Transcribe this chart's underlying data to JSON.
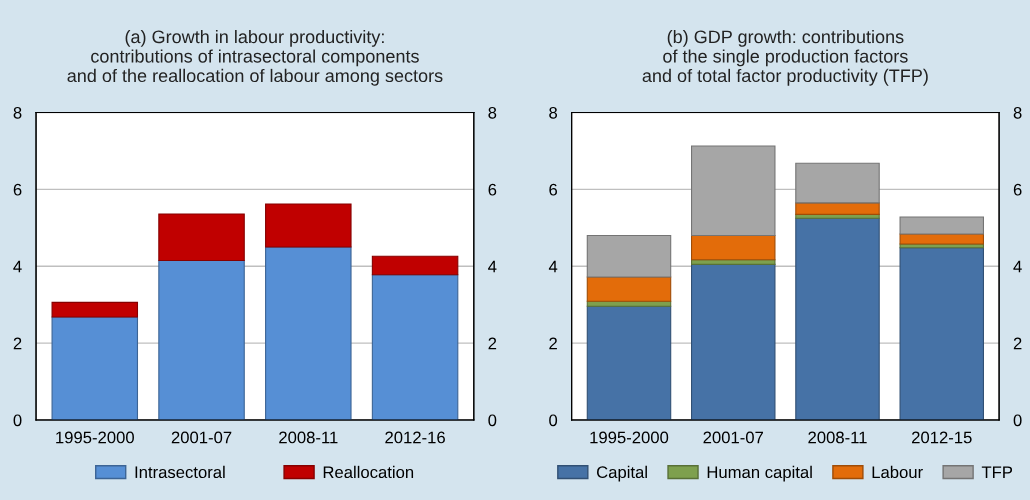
{
  "chart_data": [
    {
      "type": "bar",
      "title": "(a) Growth in labour productivity:\ncontributions of intrasectoral components\nand of the reallocation of labour among sectors",
      "categories": [
        "1995-2000",
        "2001-07",
        "2008-11",
        "2012-16"
      ],
      "stacked": true,
      "series": [
        {
          "name": "Intrasectoral",
          "color": "#568fd5",
          "values": [
            2.68,
            4.15,
            4.5,
            3.78
          ]
        },
        {
          "name": "Reallocation",
          "color": "#c00000",
          "values": [
            0.38,
            1.21,
            1.12,
            0.48
          ]
        }
      ],
      "ylim": [
        0,
        8
      ],
      "yticks": [
        0,
        2,
        4,
        6,
        8
      ],
      "y2lim": [
        0,
        8
      ],
      "y2ticks": [
        0,
        2,
        4,
        6,
        8
      ],
      "grid": "y",
      "legend": "bottom"
    },
    {
      "type": "bar",
      "title": "(b) GDP growth: contributions\nof the single production factors\nand of total factor productivity (TFP)",
      "categories": [
        "1995-2000",
        "2001-07",
        "2008-11",
        "2012-15"
      ],
      "stacked": true,
      "series": [
        {
          "name": "Capital",
          "color": "#4672a6",
          "values": [
            2.96,
            4.05,
            5.25,
            4.48
          ]
        },
        {
          "name": "Human capital",
          "color": "#7ea04e",
          "values": [
            0.13,
            0.12,
            0.1,
            0.1
          ]
        },
        {
          "name": "Labour",
          "color": "#e36c0a",
          "values": [
            0.63,
            0.63,
            0.3,
            0.26
          ]
        },
        {
          "name": "TFP",
          "color": "#a6a6a6",
          "values": [
            1.08,
            2.33,
            1.03,
            0.44
          ]
        }
      ],
      "ylim": [
        0,
        8
      ],
      "yticks": [
        0,
        2,
        4,
        6,
        8
      ],
      "y2lim": [
        0,
        8
      ],
      "y2ticks": [
        0,
        2,
        4,
        6,
        8
      ],
      "grid": "y",
      "legend": "bottom"
    }
  ]
}
